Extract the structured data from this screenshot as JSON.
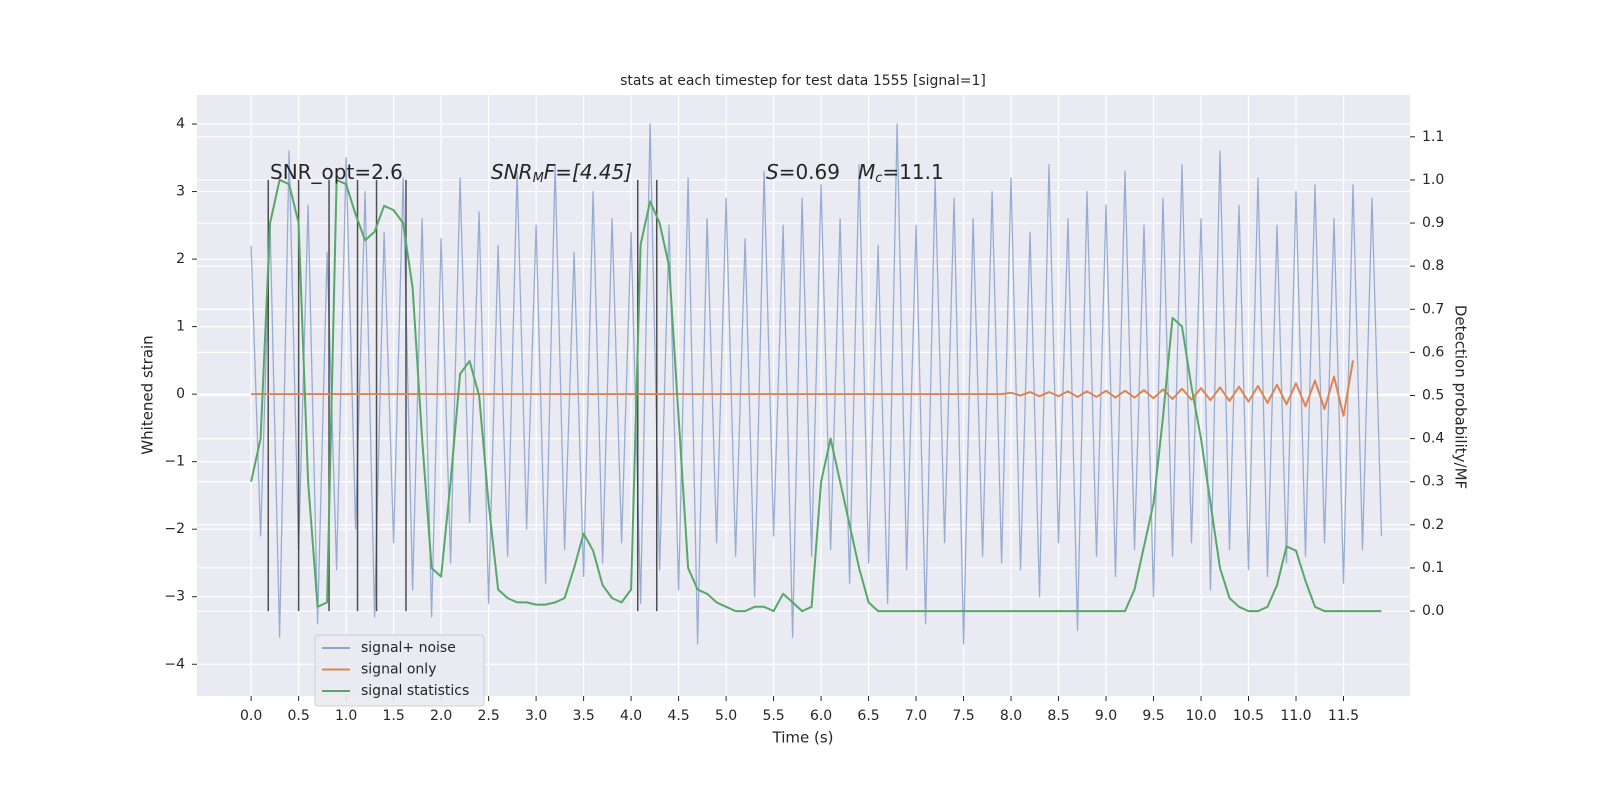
{
  "chart_data": {
    "type": "line",
    "title": "stats at each timestep for test data 1555 [signal=1]",
    "xlabel": "Time (s)",
    "ylabel": "Whitened strain",
    "y2label": "Detection probability/MF",
    "annotations": [
      [
        "SNR_opt=2.6"
      ],
      [
        "SNR",
        "M",
        "F=[4.45]"
      ],
      [
        "S",
        "=0.69",
        "M",
        "c",
        "=11.1"
      ]
    ],
    "xlim": [
      -0.57,
      12.2
    ],
    "ylim": [
      -4.47,
      4.43
    ],
    "y2lim": [
      -0.197,
      1.197
    ],
    "xticks": [
      {
        "value": 0,
        "label": "0.0"
      },
      {
        "value": 0.5,
        "label": "0.5"
      },
      {
        "value": 1,
        "label": "1.0"
      },
      {
        "value": 1.5,
        "label": "1.5"
      },
      {
        "value": 2,
        "label": "2.0"
      },
      {
        "value": 2.5,
        "label": "2.5"
      },
      {
        "value": 3,
        "label": "3.0"
      },
      {
        "value": 3.5,
        "label": "3.5"
      },
      {
        "value": 4,
        "label": "4.0"
      },
      {
        "value": 4.5,
        "label": "4.5"
      },
      {
        "value": 5,
        "label": "5.0"
      },
      {
        "value": 5.5,
        "label": "5.5"
      },
      {
        "value": 6,
        "label": "6.0"
      },
      {
        "value": 6.5,
        "label": "6.5"
      },
      {
        "value": 7,
        "label": "7.0"
      },
      {
        "value": 7.5,
        "label": "7.5"
      },
      {
        "value": 8,
        "label": "8.0"
      },
      {
        "value": 8.5,
        "label": "8.5"
      },
      {
        "value": 9,
        "label": "9.0"
      },
      {
        "value": 9.5,
        "label": "9.5"
      },
      {
        "value": 10,
        "label": "10.0"
      },
      {
        "value": 10.5,
        "label": "10.5"
      },
      {
        "value": 11,
        "label": "11.0"
      },
      {
        "value": 11.5,
        "label": "11.5"
      }
    ],
    "yticks": [
      {
        "value": -4,
        "label": "−4"
      },
      {
        "value": -3,
        "label": "−3"
      },
      {
        "value": -2,
        "label": "−2"
      },
      {
        "value": -1,
        "label": "−1"
      },
      0,
      1,
      2,
      3,
      4
    ],
    "y2ticks": [
      {
        "value": 0,
        "label": "0.0"
      },
      {
        "value": 0.1,
        "label": "0.1"
      },
      {
        "value": 0.2,
        "label": "0.2"
      },
      {
        "value": 0.3,
        "label": "0.3"
      },
      {
        "value": 0.4,
        "label": "0.4"
      },
      {
        "value": 0.5,
        "label": "0.5"
      },
      {
        "value": 0.6,
        "label": "0.6"
      },
      {
        "value": 0.7,
        "label": "0.7"
      },
      {
        "value": 0.8,
        "label": "0.8"
      },
      {
        "value": 0.9,
        "label": "0.9"
      },
      {
        "value": 1,
        "label": "1.0"
      },
      {
        "value": 1.1,
        "label": "1.1"
      }
    ],
    "grid": true,
    "legend": "lower left",
    "markers": [
      0.18,
      0.5,
      0.82,
      1.12,
      1.32,
      1.63,
      4.07,
      4.27
    ],
    "marker_color": "#333333",
    "x": [
      0,
      0.1,
      0.2,
      0.3,
      0.4,
      0.5,
      0.6,
      0.7,
      0.8,
      0.9,
      1,
      1.1,
      1.2,
      1.3,
      1.4,
      1.5,
      1.6,
      1.7,
      1.8,
      1.9,
      2,
      2.1,
      2.2,
      2.3,
      2.4,
      2.5,
      2.6,
      2.7,
      2.8,
      2.9,
      3,
      3.1,
      3.2,
      3.3,
      3.4,
      3.5,
      3.6,
      3.7,
      3.8,
      3.9,
      4,
      4.1,
      4.2,
      4.3,
      4.4,
      4.5,
      4.6,
      4.7,
      4.8,
      4.9,
      5,
      5.1,
      5.2,
      5.3,
      5.4,
      5.5,
      5.6,
      5.7,
      5.8,
      5.9,
      6,
      6.1,
      6.2,
      6.3,
      6.4,
      6.5,
      6.6,
      6.7,
      6.8,
      6.9,
      7,
      7.1,
      7.2,
      7.3,
      7.4,
      7.5,
      7.6,
      7.7,
      7.8,
      7.9,
      8,
      8.1,
      8.2,
      8.3,
      8.4,
      8.5,
      8.6,
      8.7,
      8.8,
      8.9,
      9,
      9.1,
      9.2,
      9.3,
      9.4,
      9.5,
      9.6,
      9.7,
      9.8,
      9.9,
      10,
      10.1,
      10.2,
      10.3,
      10.4,
      10.5,
      10.6,
      10.7,
      10.8,
      10.9,
      11,
      11.1,
      11.2,
      11.3,
      11.4,
      11.5,
      11.6,
      11.7,
      11.8,
      11.9
    ],
    "series": [
      {
        "name": "signal+ noise",
        "color": "#8fa5cf",
        "values": [
          2.2,
          -2.1,
          2.5,
          -3.6,
          3.6,
          -2.3,
          2.8,
          -3.4,
          2.1,
          -2.6,
          3.5,
          -2.0,
          3.0,
          -3.3,
          2.4,
          -2.2,
          3.2,
          -2.9,
          2.6,
          -3.3,
          2.3,
          -2.5,
          3.2,
          -1.9,
          2.7,
          -3.1,
          2.2,
          -2.4,
          3.3,
          -2.0,
          2.5,
          -2.8,
          3.4,
          -2.3,
          2.1,
          -2.7,
          3.0,
          -2.5,
          2.6,
          -2.2,
          2.4,
          -3.1,
          4.0,
          -2.6,
          2.5,
          -2.9,
          3.2,
          -3.7,
          2.6,
          -2.2,
          2.9,
          -2.4,
          2.3,
          -3.0,
          3.3,
          -2.1,
          2.5,
          -3.6,
          2.9,
          -2.4,
          3.1,
          -2.3,
          2.6,
          -2.8,
          3.4,
          -2.5,
          2.2,
          -3.1,
          4.0,
          -2.6,
          2.5,
          -3.4,
          3.2,
          -2.2,
          2.9,
          -3.7,
          2.6,
          -2.4,
          3.0,
          -2.5,
          3.2,
          -2.6,
          2.4,
          -3.0,
          3.4,
          -2.2,
          2.6,
          -3.5,
          3.0,
          -2.4,
          2.8,
          -2.7,
          3.3,
          -2.3,
          2.5,
          -3.0,
          2.9,
          -2.4,
          3.4,
          -2.2,
          2.6,
          -2.9,
          3.6,
          -2.3,
          2.8,
          -2.6,
          3.2,
          -2.7,
          2.5,
          -2.5,
          3.0,
          -2.4,
          3.1,
          -2.2,
          2.6,
          -2.8,
          3.1,
          -2.3,
          2.9,
          -2.1
        ]
      },
      {
        "name": "signal only",
        "color": "#dd8452",
        "values": [
          0,
          0,
          0,
          0,
          0,
          0,
          0,
          0,
          0,
          0,
          0,
          0,
          0,
          0,
          0,
          0,
          0,
          0,
          0,
          0,
          0,
          0,
          0,
          0,
          0,
          0,
          0,
          0,
          0,
          0,
          0,
          0,
          0,
          0,
          0,
          0,
          0,
          0,
          0,
          0,
          0,
          0,
          0,
          0,
          0,
          0,
          0,
          0,
          0,
          0,
          0,
          0,
          0,
          0,
          0,
          0,
          0,
          0,
          0,
          0,
          0,
          0,
          0,
          0,
          0,
          0,
          0,
          0,
          0,
          0,
          0,
          0,
          0,
          0,
          0,
          0,
          0,
          0,
          0,
          0,
          0.02,
          -0.02,
          0.03,
          -0.03,
          0.03,
          -0.03,
          0.04,
          -0.04,
          0.04,
          -0.04,
          0.05,
          -0.05,
          0.05,
          -0.05,
          0.06,
          -0.06,
          0.07,
          -0.07,
          0.08,
          -0.08,
          0.09,
          -0.09,
          0.1,
          -0.1,
          0.11,
          -0.11,
          0.12,
          -0.13,
          0.14,
          -0.15,
          0.16,
          -0.18,
          0.2,
          -0.22,
          0.26,
          -0.32,
          0.5,
          null,
          null,
          null
        ]
      },
      {
        "name": "signal statistics",
        "color": "#55a868",
        "axis": "y2",
        "values": [
          0.3,
          0.4,
          0.9,
          1.0,
          0.99,
          0.9,
          0.3,
          0.01,
          0.02,
          1.0,
          0.99,
          0.92,
          0.86,
          0.88,
          0.94,
          0.93,
          0.9,
          0.75,
          0.4,
          0.1,
          0.08,
          0.3,
          0.55,
          0.58,
          0.5,
          0.25,
          0.05,
          0.03,
          0.02,
          0.02,
          0.015,
          0.015,
          0.02,
          0.03,
          0.1,
          0.18,
          0.14,
          0.06,
          0.03,
          0.02,
          0.05,
          0.85,
          0.95,
          0.9,
          0.8,
          0.45,
          0.1,
          0.05,
          0.04,
          0.02,
          0.01,
          0,
          0,
          0.01,
          0.01,
          0,
          0.04,
          0.02,
          0,
          0.01,
          0.3,
          0.4,
          0.3,
          0.2,
          0.1,
          0.02,
          0,
          0,
          0,
          0,
          0,
          0,
          0,
          0,
          0,
          0,
          0,
          0,
          0,
          0,
          0,
          0,
          0,
          0,
          0,
          0,
          0,
          0,
          0,
          0,
          0,
          0,
          0,
          0.05,
          0.15,
          0.25,
          0.45,
          0.68,
          0.66,
          0.52,
          0.4,
          0.25,
          0.1,
          0.03,
          0.01,
          0,
          0,
          0.01,
          0.06,
          0.15,
          0.14,
          0.07,
          0.01,
          0,
          0,
          0,
          0,
          0,
          0,
          0
        ]
      }
    ]
  }
}
